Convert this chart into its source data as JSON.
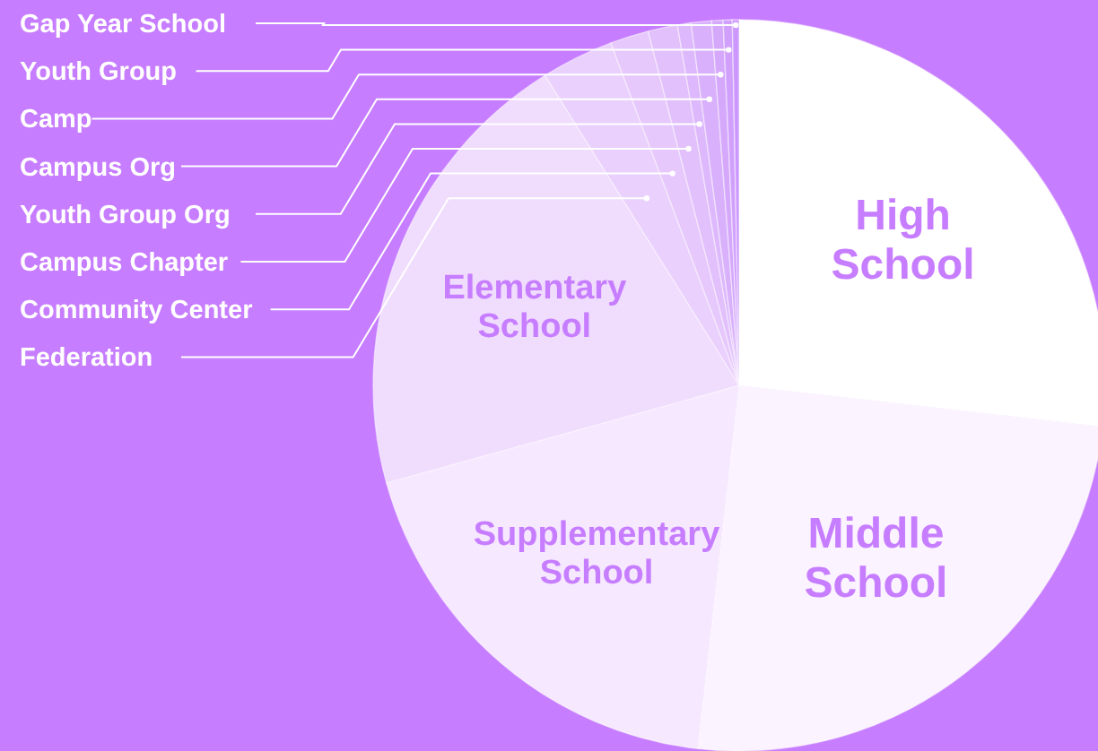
{
  "chart_data": {
    "type": "pie",
    "categories": [
      "High School",
      "Middle School",
      "Supplementary School",
      "Elementary School",
      "Federation",
      "Community Center",
      "Campus Chapter",
      "Youth Group Org",
      "Campus Org",
      "Camp",
      "Youth Group",
      "Gap Year School"
    ],
    "values": [
      26.8,
      25,
      18.9,
      20.4,
      3.2,
      1.7,
      1.3,
      0.6,
      0.9,
      0.5,
      0.4,
      0.3
    ],
    "colors": [
      "#ffffff",
      "#fbf3ff",
      "#f6e8fe",
      "#f0dcfd",
      "#ead0fc",
      "#e6c8fc",
      "#e2c0fc",
      "#ddb8fc",
      "#d9b0fc",
      "#d5a8fc",
      "#d1a0fd",
      "#cd98fe"
    ],
    "data_labels": false
  }
}
